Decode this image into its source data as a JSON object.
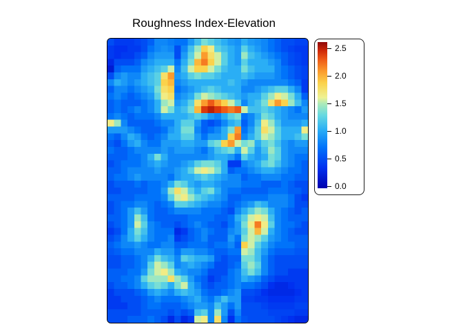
{
  "title": "Roughness Index-Elevation",
  "colorbar": {
    "ticks": [
      {
        "value": 2.5,
        "label": "2.5"
      },
      {
        "value": 2.0,
        "label": "2.0"
      },
      {
        "value": 1.5,
        "label": "1.5"
      },
      {
        "value": 1.0,
        "label": "1.0"
      },
      {
        "value": 0.5,
        "label": "0.5"
      },
      {
        "value": 0.0,
        "label": "0.0"
      }
    ]
  },
  "chart_data": {
    "type": "heatmap",
    "title": "Roughness Index-Elevation",
    "legend_position": "right",
    "grid": false,
    "zlim": [
      0,
      2.5
    ],
    "colorbar_ticks": [
      0.0,
      0.5,
      1.0,
      1.5,
      2.0,
      2.5
    ],
    "rows": 42,
    "cols": 30,
    "colormap": [
      [
        0.0,
        "#0000ad"
      ],
      [
        0.35,
        "#0030f0"
      ],
      [
        0.7,
        "#0073fa"
      ],
      [
        1.0,
        "#2aaef5"
      ],
      [
        1.25,
        "#66d9e0"
      ],
      [
        1.45,
        "#aeebb8"
      ],
      [
        1.55,
        "#eef293"
      ],
      [
        1.8,
        "#fbd24b"
      ],
      [
        2.0,
        "#fb9b2d"
      ],
      [
        2.2,
        "#ee5a17"
      ],
      [
        2.35,
        "#d02908"
      ],
      [
        2.5,
        "#8f0a0a"
      ]
    ],
    "values": [
      [
        0.5,
        0.4,
        0.4,
        0.4,
        0.45,
        0.5,
        0.6,
        0.8,
        0.8,
        0.75,
        0.7,
        0.7,
        0.9,
        1.1,
        1.3,
        1.2,
        1.1,
        1.0,
        0.9,
        0.85,
        1.0,
        0.9,
        0.85,
        0.8,
        0.7,
        0.6,
        0.5,
        0.5,
        0.45,
        0.45
      ],
      [
        0.4,
        0.35,
        0.35,
        0.4,
        0.4,
        0.5,
        0.7,
        0.8,
        0.85,
        0.8,
        0.5,
        0.8,
        1.1,
        1.4,
        1.8,
        1.6,
        1.2,
        1.1,
        1.0,
        0.9,
        1.2,
        1.0,
        0.9,
        0.8,
        0.7,
        0.6,
        0.5,
        0.45,
        0.4,
        0.4
      ],
      [
        0.4,
        0.35,
        0.4,
        0.4,
        0.5,
        0.6,
        0.8,
        0.9,
        0.9,
        0.9,
        0.5,
        0.9,
        1.2,
        1.5,
        2.0,
        1.7,
        1.5,
        1.2,
        1.0,
        0.9,
        1.4,
        1.1,
        1.0,
        0.9,
        0.8,
        0.7,
        0.6,
        0.5,
        0.45,
        0.4
      ],
      [
        0.3,
        0.5,
        0.5,
        0.5,
        0.6,
        0.8,
        0.9,
        1.0,
        1.0,
        1.0,
        0.7,
        1.0,
        1.3,
        1.9,
        2.1,
        1.8,
        1.5,
        1.2,
        1.0,
        0.9,
        1.2,
        1.0,
        1.0,
        1.0,
        0.9,
        0.8,
        0.6,
        0.5,
        0.45,
        0.4
      ],
      [
        0.2,
        0.6,
        0.7,
        0.7,
        0.7,
        0.9,
        1.0,
        1.1,
        1.2,
        1.5,
        0.8,
        1.1,
        1.5,
        1.8,
        1.8,
        1.5,
        1.3,
        1.1,
        1.0,
        1.0,
        1.3,
        1.1,
        1.0,
        1.0,
        1.0,
        0.8,
        0.7,
        0.6,
        0.5,
        0.45
      ],
      [
        0.5,
        0.8,
        0.9,
        0.8,
        0.8,
        1.0,
        1.1,
        1.2,
        1.7,
        2.0,
        0.9,
        1.0,
        1.2,
        1.3,
        1.2,
        1.2,
        1.1,
        1.0,
        1.0,
        1.0,
        1.1,
        1.0,
        0.9,
        0.9,
        0.9,
        0.8,
        0.7,
        0.6,
        0.5,
        0.45
      ],
      [
        0.8,
        1.0,
        0.9,
        0.8,
        0.9,
        1.0,
        1.1,
        1.2,
        1.8,
        1.9,
        0.8,
        0.9,
        1.0,
        1.0,
        1.0,
        1.0,
        1.0,
        1.0,
        1.1,
        1.0,
        0.9,
        0.8,
        0.8,
        0.8,
        0.8,
        0.8,
        0.8,
        0.7,
        0.6,
        0.4
      ],
      [
        0.6,
        0.8,
        0.8,
        0.7,
        0.8,
        0.9,
        1.0,
        1.3,
        1.7,
        1.8,
        0.7,
        0.8,
        0.9,
        1.0,
        1.1,
        1.2,
        1.1,
        1.0,
        1.0,
        1.0,
        0.8,
        0.8,
        0.9,
        1.0,
        1.1,
        1.2,
        1.2,
        1.0,
        0.8,
        0.4
      ],
      [
        0.7,
        0.8,
        0.7,
        0.6,
        0.7,
        0.8,
        0.9,
        1.2,
        1.6,
        1.7,
        0.8,
        0.9,
        1.0,
        1.3,
        1.5,
        1.4,
        1.3,
        1.2,
        1.1,
        1.0,
        0.9,
        1.0,
        1.0,
        1.2,
        1.4,
        1.6,
        1.5,
        1.3,
        1.0,
        0.6
      ],
      [
        0.6,
        0.7,
        0.6,
        0.6,
        0.6,
        0.7,
        0.8,
        1.0,
        1.4,
        1.5,
        0.9,
        1.0,
        1.2,
        1.7,
        2.0,
        2.2,
        2.0,
        1.8,
        1.5,
        1.2,
        0.8,
        1.0,
        1.1,
        1.3,
        1.7,
        2.0,
        1.8,
        1.4,
        1.1,
        0.8
      ],
      [
        0.6,
        0.7,
        0.6,
        0.7,
        0.8,
        0.7,
        0.8,
        1.0,
        1.5,
        1.3,
        1.0,
        1.1,
        1.3,
        1.9,
        2.3,
        2.4,
        2.3,
        2.2,
        2.1,
        2.2,
        1.5,
        1.1,
        1.1,
        1.2,
        1.1,
        1.0,
        0.9,
        0.8,
        0.7,
        0.9
      ],
      [
        0.7,
        0.8,
        0.7,
        0.6,
        0.7,
        0.7,
        0.7,
        0.8,
        1.0,
        1.0,
        1.0,
        1.0,
        1.1,
        1.2,
        1.1,
        0.9,
        0.8,
        1.0,
        1.2,
        1.3,
        0.7,
        0.8,
        1.0,
        1.3,
        1.2,
        1.0,
        0.9,
        0.8,
        0.8,
        0.8
      ],
      [
        1.6,
        1.4,
        0.8,
        0.6,
        0.6,
        0.6,
        0.6,
        0.7,
        0.8,
        0.8,
        1.0,
        1.2,
        1.2,
        0.9,
        0.6,
        0.5,
        0.6,
        0.8,
        1.0,
        1.1,
        0.6,
        0.8,
        1.1,
        1.6,
        1.4,
        1.1,
        0.9,
        0.9,
        0.9,
        1.0
      ],
      [
        0.9,
        0.9,
        0.9,
        0.8,
        0.7,
        0.6,
        0.6,
        0.6,
        0.7,
        0.9,
        1.0,
        1.3,
        1.3,
        0.8,
        0.6,
        0.7,
        0.8,
        1.0,
        1.3,
        2.0,
        0.7,
        0.9,
        1.2,
        1.7,
        1.5,
        1.2,
        1.0,
        1.0,
        1.0,
        1.6
      ],
      [
        0.7,
        0.6,
        0.8,
        1.0,
        0.9,
        0.7,
        0.6,
        0.7,
        0.8,
        1.0,
        1.0,
        1.2,
        1.2,
        0.9,
        0.7,
        0.9,
        0.9,
        1.0,
        1.8,
        2.1,
        0.8,
        1.0,
        1.2,
        1.5,
        1.4,
        1.2,
        1.0,
        1.0,
        1.1,
        1.3
      ],
      [
        0.6,
        0.5,
        0.7,
        0.9,
        1.0,
        0.8,
        0.7,
        0.7,
        0.9,
        0.9,
        0.9,
        1.0,
        1.0,
        0.9,
        0.9,
        1.2,
        1.3,
        1.8,
        2.0,
        1.5,
        1.3,
        1.4,
        1.0,
        1.2,
        1.3,
        1.1,
        0.9,
        0.8,
        0.9,
        0.9
      ],
      [
        0.7,
        0.6,
        0.6,
        0.7,
        0.8,
        0.8,
        0.8,
        0.8,
        0.9,
        0.8,
        0.9,
        0.9,
        0.9,
        0.8,
        0.7,
        0.9,
        1.1,
        1.2,
        1.3,
        1.0,
        1.5,
        1.2,
        0.9,
        1.1,
        1.4,
        1.2,
        0.9,
        0.8,
        0.8,
        0.8
      ],
      [
        0.6,
        0.6,
        0.6,
        0.7,
        0.7,
        0.8,
        1.0,
        1.3,
        1.0,
        0.8,
        0.8,
        0.8,
        0.8,
        0.8,
        0.8,
        0.9,
        1.0,
        1.0,
        0.9,
        0.7,
        1.2,
        1.0,
        0.9,
        1.0,
        1.3,
        1.2,
        0.9,
        0.8,
        0.7,
        0.7
      ],
      [
        0.5,
        0.6,
        0.7,
        0.7,
        0.7,
        0.8,
        0.9,
        1.0,
        0.9,
        0.8,
        0.8,
        0.9,
        1.0,
        1.2,
        1.3,
        1.3,
        1.2,
        1.0,
        0.4,
        0.4,
        0.8,
        0.9,
        1.0,
        1.2,
        1.3,
        1.1,
        0.9,
        0.8,
        0.7,
        0.6
      ],
      [
        0.6,
        0.6,
        0.7,
        0.8,
        0.8,
        0.8,
        0.8,
        0.9,
        0.8,
        0.8,
        0.9,
        1.0,
        1.2,
        1.5,
        1.6,
        1.5,
        1.3,
        1.0,
        0.6,
        0.7,
        0.7,
        0.8,
        0.9,
        1.0,
        1.0,
        0.9,
        0.8,
        0.7,
        0.7,
        0.6
      ],
      [
        0.6,
        0.7,
        0.7,
        0.8,
        0.9,
        0.8,
        0.8,
        0.8,
        0.8,
        0.7,
        0.9,
        1.0,
        1.0,
        1.1,
        1.2,
        1.1,
        1.0,
        0.9,
        0.8,
        0.8,
        0.6,
        0.7,
        0.7,
        0.8,
        0.8,
        0.8,
        0.7,
        0.7,
        0.6,
        0.6
      ],
      [
        0.5,
        0.6,
        0.6,
        0.6,
        0.7,
        0.6,
        0.7,
        0.7,
        0.8,
        1.0,
        1.3,
        1.2,
        1.0,
        0.9,
        1.0,
        1.0,
        0.9,
        0.8,
        0.8,
        0.8,
        0.7,
        0.7,
        0.7,
        0.6,
        0.6,
        0.6,
        0.7,
        0.6,
        0.5,
        0.5
      ],
      [
        0.5,
        0.5,
        0.6,
        0.6,
        0.6,
        0.6,
        0.7,
        0.7,
        0.9,
        1.4,
        1.7,
        1.5,
        1.2,
        1.0,
        1.2,
        1.3,
        1.0,
        0.8,
        0.7,
        0.7,
        0.6,
        0.6,
        0.6,
        0.6,
        0.7,
        0.7,
        0.7,
        0.6,
        0.6,
        0.5
      ],
      [
        0.6,
        0.6,
        0.6,
        0.6,
        0.7,
        0.7,
        0.7,
        0.7,
        0.8,
        1.2,
        1.5,
        1.6,
        1.4,
        1.2,
        1.1,
        1.0,
        0.9,
        0.8,
        0.6,
        0.6,
        0.7,
        0.7,
        0.7,
        0.7,
        0.8,
        0.8,
        0.8,
        0.7,
        0.5,
        0.4
      ],
      [
        0.5,
        0.6,
        0.7,
        0.7,
        0.8,
        0.8,
        0.7,
        0.6,
        0.7,
        0.8,
        1.2,
        1.2,
        1.1,
        1.0,
        0.9,
        0.8,
        0.8,
        0.7,
        0.6,
        0.7,
        0.8,
        0.9,
        1.1,
        1.0,
        0.8,
        0.8,
        0.8,
        0.7,
        0.5,
        0.5
      ],
      [
        0.5,
        0.6,
        0.7,
        0.9,
        1.1,
        0.9,
        0.7,
        0.6,
        0.6,
        0.7,
        0.8,
        0.8,
        0.8,
        0.8,
        0.7,
        0.7,
        0.7,
        0.6,
        0.5,
        0.8,
        1.0,
        1.2,
        1.4,
        1.3,
        1.0,
        0.8,
        0.7,
        0.6,
        0.5,
        0.6
      ],
      [
        0.6,
        0.6,
        0.7,
        0.9,
        1.4,
        1.1,
        0.7,
        0.6,
        0.6,
        0.6,
        0.6,
        0.6,
        0.7,
        0.7,
        0.7,
        0.7,
        0.6,
        0.6,
        0.7,
        1.0,
        1.2,
        1.5,
        1.6,
        1.5,
        1.1,
        0.8,
        0.7,
        0.6,
        0.6,
        0.6
      ],
      [
        0.5,
        0.6,
        0.7,
        0.9,
        1.5,
        1.2,
        0.8,
        0.7,
        0.6,
        0.6,
        0.5,
        0.6,
        0.7,
        0.8,
        0.7,
        0.6,
        0.6,
        0.5,
        0.7,
        0.9,
        1.3,
        1.6,
        2.1,
        1.6,
        1.2,
        0.8,
        0.7,
        0.7,
        0.6,
        0.5
      ],
      [
        0.4,
        0.5,
        0.7,
        1.0,
        1.3,
        1.1,
        0.8,
        0.7,
        0.7,
        0.7,
        0.3,
        0.4,
        0.6,
        0.7,
        0.8,
        0.7,
        0.6,
        0.6,
        0.8,
        0.9,
        1.2,
        1.5,
        1.9,
        1.5,
        1.0,
        0.8,
        0.7,
        0.6,
        0.5,
        0.5
      ],
      [
        0.5,
        0.6,
        0.8,
        1.0,
        1.2,
        1.0,
        0.8,
        0.7,
        0.7,
        0.8,
        0.4,
        0.5,
        0.6,
        0.7,
        0.8,
        0.6,
        0.6,
        0.6,
        0.9,
        0.7,
        1.3,
        1.5,
        1.4,
        1.2,
        0.9,
        0.8,
        0.7,
        0.6,
        0.6,
        0.6
      ],
      [
        0.6,
        0.7,
        0.8,
        0.8,
        0.9,
        0.8,
        0.7,
        0.7,
        0.8,
        0.8,
        0.6,
        0.6,
        0.7,
        0.7,
        0.7,
        0.6,
        0.7,
        0.7,
        0.8,
        0.6,
        1.8,
        1.5,
        1.2,
        1.0,
        0.8,
        0.7,
        0.7,
        0.7,
        0.6,
        0.6
      ],
      [
        0.55,
        0.6,
        0.7,
        0.7,
        0.8,
        0.8,
        0.8,
        1.0,
        0.9,
        0.9,
        0.7,
        0.9,
        0.9,
        0.8,
        0.8,
        0.7,
        0.6,
        0.6,
        0.7,
        0.7,
        1.5,
        1.4,
        1.1,
        0.9,
        0.7,
        0.6,
        0.6,
        0.6,
        0.55,
        0.55
      ],
      [
        0.5,
        0.5,
        0.6,
        0.6,
        0.7,
        0.8,
        1.0,
        1.3,
        1.1,
        1.0,
        0.8,
        1.2,
        1.1,
        1.0,
        1.0,
        0.9,
        0.6,
        0.5,
        0.6,
        0.6,
        1.3,
        1.3,
        1.1,
        0.8,
        0.6,
        0.5,
        0.5,
        0.5,
        0.5,
        0.5
      ],
      [
        0.5,
        0.5,
        0.6,
        0.6,
        0.7,
        0.8,
        1.2,
        1.5,
        1.4,
        1.2,
        0.8,
        0.9,
        1.0,
        0.9,
        0.8,
        0.7,
        0.5,
        0.5,
        0.6,
        0.7,
        1.2,
        1.4,
        1.2,
        0.8,
        0.6,
        0.5,
        0.5,
        0.5,
        0.5,
        0.5
      ],
      [
        0.6,
        0.6,
        0.6,
        0.7,
        0.7,
        0.9,
        1.3,
        1.5,
        1.6,
        1.4,
        1.0,
        0.9,
        0.8,
        0.8,
        0.7,
        0.5,
        0.5,
        0.5,
        0.7,
        0.8,
        1.1,
        1.3,
        1.1,
        0.8,
        0.6,
        0.5,
        0.5,
        0.4,
        0.4,
        0.4
      ],
      [
        0.6,
        0.6,
        0.7,
        0.7,
        0.8,
        1.2,
        1.4,
        1.4,
        1.4,
        1.7,
        1.4,
        1.2,
        0.9,
        0.7,
        0.6,
        0.4,
        0.5,
        0.6,
        0.7,
        0.8,
        1.0,
        0.9,
        0.8,
        0.6,
        0.5,
        0.4,
        0.4,
        0.4,
        0.4,
        0.4
      ],
      [
        0.5,
        0.6,
        0.6,
        0.7,
        0.8,
        1.0,
        1.2,
        1.3,
        1.2,
        1.0,
        1.3,
        1.5,
        1.0,
        0.8,
        0.6,
        0.5,
        0.6,
        0.6,
        0.7,
        0.8,
        0.7,
        0.7,
        0.6,
        0.5,
        0.35,
        0.3,
        0.3,
        0.35,
        0.4,
        0.4
      ],
      [
        0.4,
        0.5,
        0.5,
        0.5,
        0.6,
        0.7,
        0.9,
        1.0,
        0.9,
        0.8,
        1.0,
        1.1,
        1.0,
        0.9,
        0.7,
        0.6,
        0.6,
        0.7,
        0.8,
        0.9,
        0.5,
        0.5,
        0.45,
        0.35,
        0.3,
        0.3,
        0.3,
        0.3,
        0.35,
        0.4
      ],
      [
        0.4,
        0.4,
        0.5,
        0.5,
        0.5,
        0.6,
        0.7,
        0.8,
        0.7,
        0.7,
        0.7,
        0.8,
        0.9,
        1.0,
        0.8,
        0.7,
        0.9,
        1.1,
        0.9,
        0.9,
        0.45,
        0.45,
        0.4,
        0.4,
        0.35,
        0.35,
        0.35,
        0.35,
        0.4,
        0.4
      ],
      [
        0.4,
        0.4,
        0.4,
        0.5,
        0.5,
        0.6,
        0.7,
        0.7,
        0.6,
        0.6,
        0.6,
        0.7,
        0.8,
        0.9,
        0.9,
        0.8,
        1.1,
        0.9,
        0.7,
        0.9,
        0.5,
        0.5,
        0.5,
        0.45,
        0.4,
        0.4,
        0.4,
        0.4,
        0.45,
        0.45
      ],
      [
        0.5,
        0.5,
        0.5,
        0.5,
        0.5,
        0.6,
        0.6,
        0.6,
        0.6,
        0.5,
        0.6,
        0.5,
        0.6,
        1.1,
        1.2,
        0.8,
        1.4,
        0.9,
        0.5,
        0.8,
        0.5,
        0.5,
        0.5,
        0.5,
        0.45,
        0.45,
        0.45,
        0.45,
        0.4,
        0.4
      ],
      [
        0.5,
        0.5,
        0.5,
        0.6,
        0.6,
        0.6,
        0.7,
        0.6,
        0.5,
        0.3,
        0.5,
        0.3,
        0.4,
        1.5,
        1.6,
        0.8,
        1.7,
        0.8,
        0.35,
        0.7,
        0.55,
        0.5,
        0.5,
        0.5,
        0.5,
        0.45,
        0.4,
        0.35,
        0.3,
        0.3
      ]
    ]
  }
}
